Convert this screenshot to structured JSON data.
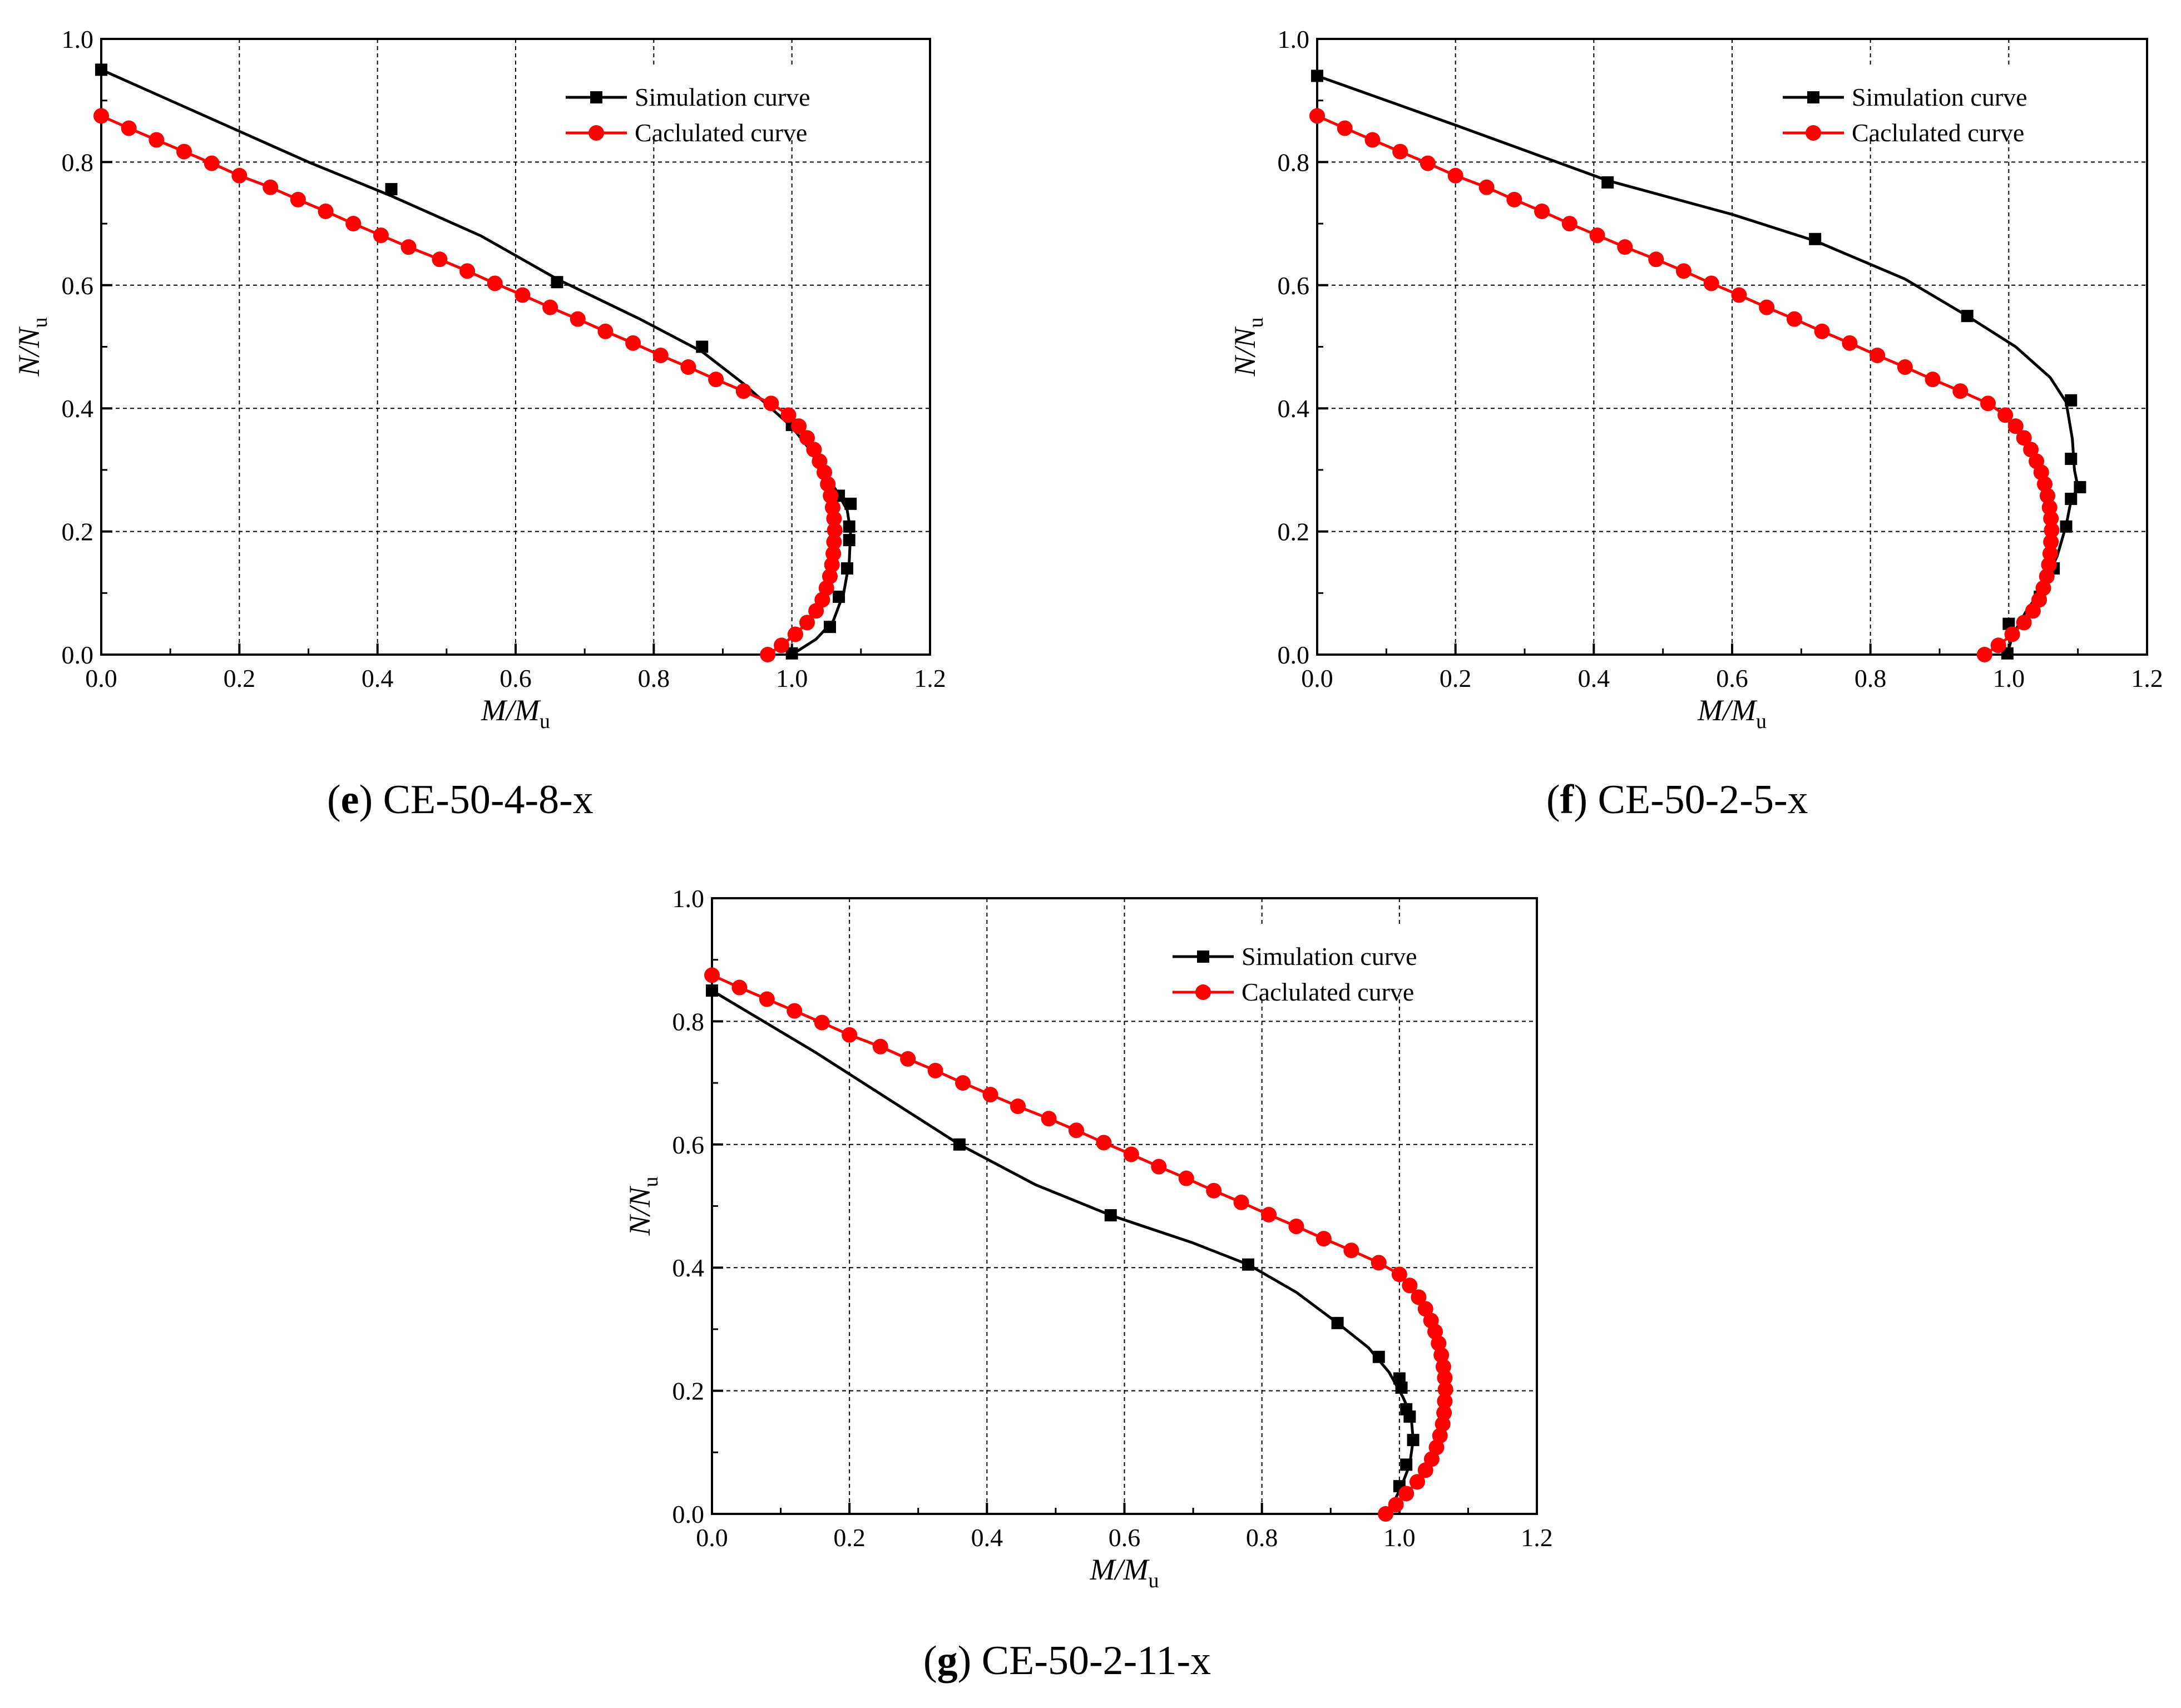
{
  "figure": {
    "colors": {
      "simulation": "#000000",
      "calculated": "#ff0000",
      "grid": "#000000",
      "background": "#ffffff"
    },
    "legend_position": "top-right",
    "axis_labels": {
      "x": {
        "main": "M/M",
        "sub": "u"
      },
      "y": {
        "main": "N/N",
        "sub": "u"
      }
    }
  },
  "chart_data": [
    {
      "id": "e",
      "type": "line",
      "caption_letter": "e",
      "caption_text": " CE-50-4-8-x",
      "xlim": [
        0,
        1.2
      ],
      "ylim": [
        0,
        1.0
      ],
      "x_ticks": [
        "0.0",
        "0.2",
        "0.4",
        "0.6",
        "0.8",
        "1.0",
        "1.2"
      ],
      "y_ticks": [
        "0.0",
        "0.2",
        "0.4",
        "0.6",
        "0.8",
        "1.0"
      ],
      "grid": true,
      "series": [
        {
          "name": "Simulation curve",
          "color": "#000000",
          "marker": "square",
          "points": [
            [
              0.0,
              0.95
            ],
            [
              0.42,
              0.756
            ],
            [
              0.66,
              0.605
            ],
            [
              0.87,
              0.5
            ],
            [
              1.0,
              0.373
            ],
            [
              1.068,
              0.258
            ],
            [
              1.085,
              0.245
            ],
            [
              1.083,
              0.208
            ],
            [
              1.083,
              0.186
            ],
            [
              1.08,
              0.14
            ],
            [
              1.068,
              0.094
            ],
            [
              1.055,
              0.045
            ],
            [
              1.0,
              0.002
            ]
          ],
          "curve": [
            [
              0.0,
              0.95
            ],
            [
              0.15,
              0.875
            ],
            [
              0.3,
              0.8
            ],
            [
              0.42,
              0.745
            ],
            [
              0.55,
              0.68
            ],
            [
              0.66,
              0.61
            ],
            [
              0.78,
              0.545
            ],
            [
              0.87,
              0.492
            ],
            [
              0.93,
              0.44
            ],
            [
              0.97,
              0.4
            ],
            [
              1.0,
              0.37
            ],
            [
              1.035,
              0.32
            ],
            [
              1.065,
              0.265
            ],
            [
              1.08,
              0.235
            ],
            [
              1.085,
              0.2
            ],
            [
              1.083,
              0.15
            ],
            [
              1.075,
              0.1
            ],
            [
              1.06,
              0.055
            ],
            [
              1.035,
              0.025
            ],
            [
              1.0,
              0.0
            ]
          ]
        },
        {
          "name": "Caclulated curve",
          "color": "#ff0000",
          "marker": "circle",
          "points": [
            [
              0.0,
              0.875
            ],
            [
              0.04,
              0.855
            ],
            [
              0.08,
              0.836
            ],
            [
              0.12,
              0.817
            ],
            [
              0.16,
              0.798
            ],
            [
              0.2,
              0.778
            ],
            [
              0.245,
              0.759
            ],
            [
              0.285,
              0.739
            ],
            [
              0.325,
              0.72
            ],
            [
              0.365,
              0.7
            ],
            [
              0.405,
              0.681
            ],
            [
              0.445,
              0.662
            ],
            [
              0.49,
              0.642
            ],
            [
              0.53,
              0.623
            ],
            [
              0.57,
              0.603
            ],
            [
              0.61,
              0.584
            ],
            [
              0.65,
              0.564
            ],
            [
              0.69,
              0.545
            ],
            [
              0.73,
              0.525
            ],
            [
              0.77,
              0.506
            ],
            [
              0.81,
              0.486
            ],
            [
              0.85,
              0.467
            ],
            [
              0.89,
              0.447
            ],
            [
              0.93,
              0.428
            ],
            [
              0.97,
              0.408
            ],
            [
              0.995,
              0.389
            ],
            [
              1.01,
              0.371
            ],
            [
              1.022,
              0.352
            ],
            [
              1.032,
              0.333
            ],
            [
              1.04,
              0.314
            ],
            [
              1.047,
              0.296
            ],
            [
              1.052,
              0.277
            ],
            [
              1.056,
              0.258
            ],
            [
              1.059,
              0.239
            ],
            [
              1.061,
              0.221
            ],
            [
              1.062,
              0.202
            ],
            [
              1.061,
              0.183
            ],
            [
              1.06,
              0.164
            ],
            [
              1.058,
              0.146
            ],
            [
              1.055,
              0.127
            ],
            [
              1.05,
              0.108
            ],
            [
              1.044,
              0.089
            ],
            [
              1.035,
              0.071
            ],
            [
              1.022,
              0.052
            ],
            [
              1.005,
              0.033
            ],
            [
              0.985,
              0.015
            ],
            [
              0.965,
              0.0
            ]
          ]
        }
      ]
    },
    {
      "id": "f",
      "type": "line",
      "caption_letter": "f",
      "caption_text": " CE-50-2-5-x",
      "xlim": [
        0,
        1.2
      ],
      "ylim": [
        0,
        1.0
      ],
      "x_ticks": [
        "0.0",
        "0.2",
        "0.4",
        "0.6",
        "0.8",
        "1.0",
        "1.2"
      ],
      "y_ticks": [
        "0.0",
        "0.2",
        "0.4",
        "0.6",
        "0.8",
        "1.0"
      ],
      "grid": true,
      "series": [
        {
          "name": "Simulation curve",
          "color": "#000000",
          "marker": "square",
          "points": [
            [
              0.0,
              0.94
            ],
            [
              0.42,
              0.767
            ],
            [
              0.72,
              0.675
            ],
            [
              0.94,
              0.55
            ],
            [
              1.09,
              0.413
            ],
            [
              1.09,
              0.318
            ],
            [
              1.103,
              0.272
            ],
            [
              1.09,
              0.253
            ],
            [
              1.083,
              0.208
            ],
            [
              1.065,
              0.14
            ],
            [
              1.045,
              0.094
            ],
            [
              1.0,
              0.05
            ],
            [
              0.998,
              0.002
            ]
          ],
          "curve": [
            [
              0.0,
              0.94
            ],
            [
              0.2,
              0.86
            ],
            [
              0.42,
              0.77
            ],
            [
              0.6,
              0.715
            ],
            [
              0.72,
              0.672
            ],
            [
              0.85,
              0.61
            ],
            [
              0.94,
              0.55
            ],
            [
              1.01,
              0.5
            ],
            [
              1.06,
              0.45
            ],
            [
              1.083,
              0.41
            ],
            [
              1.092,
              0.35
            ],
            [
              1.095,
              0.3
            ],
            [
              1.1,
              0.272
            ],
            [
              1.09,
              0.25
            ],
            [
              1.083,
              0.21
            ],
            [
              1.07,
              0.16
            ],
            [
              1.05,
              0.11
            ],
            [
              1.025,
              0.07
            ],
            [
              1.005,
              0.03
            ],
            [
              0.998,
              0.0
            ]
          ]
        },
        {
          "name": "Caclulated curve",
          "color": "#ff0000",
          "marker": "circle",
          "points": [
            [
              0.0,
              0.875
            ],
            [
              0.04,
              0.855
            ],
            [
              0.08,
              0.836
            ],
            [
              0.12,
              0.817
            ],
            [
              0.16,
              0.798
            ],
            [
              0.2,
              0.778
            ],
            [
              0.245,
              0.759
            ],
            [
              0.285,
              0.739
            ],
            [
              0.325,
              0.72
            ],
            [
              0.365,
              0.7
            ],
            [
              0.405,
              0.681
            ],
            [
              0.445,
              0.662
            ],
            [
              0.49,
              0.642
            ],
            [
              0.53,
              0.623
            ],
            [
              0.57,
              0.603
            ],
            [
              0.61,
              0.584
            ],
            [
              0.65,
              0.564
            ],
            [
              0.69,
              0.545
            ],
            [
              0.73,
              0.525
            ],
            [
              0.77,
              0.506
            ],
            [
              0.81,
              0.486
            ],
            [
              0.85,
              0.467
            ],
            [
              0.89,
              0.447
            ],
            [
              0.93,
              0.428
            ],
            [
              0.97,
              0.408
            ],
            [
              0.995,
              0.389
            ],
            [
              1.01,
              0.371
            ],
            [
              1.022,
              0.352
            ],
            [
              1.032,
              0.333
            ],
            [
              1.04,
              0.314
            ],
            [
              1.047,
              0.296
            ],
            [
              1.052,
              0.277
            ],
            [
              1.056,
              0.258
            ],
            [
              1.059,
              0.239
            ],
            [
              1.061,
              0.221
            ],
            [
              1.062,
              0.202
            ],
            [
              1.061,
              0.183
            ],
            [
              1.06,
              0.164
            ],
            [
              1.058,
              0.146
            ],
            [
              1.055,
              0.127
            ],
            [
              1.05,
              0.108
            ],
            [
              1.044,
              0.089
            ],
            [
              1.035,
              0.071
            ],
            [
              1.022,
              0.052
            ],
            [
              1.005,
              0.033
            ],
            [
              0.985,
              0.015
            ],
            [
              0.965,
              0.0
            ]
          ]
        }
      ]
    },
    {
      "id": "g",
      "type": "line",
      "caption_letter": "g",
      "caption_text": " CE-50-2-11-x",
      "xlim": [
        0,
        1.2
      ],
      "ylim": [
        0,
        1.0
      ],
      "x_ticks": [
        "0.0",
        "0.2",
        "0.4",
        "0.6",
        "0.8",
        "1.0",
        "1.2"
      ],
      "y_ticks": [
        "0.0",
        "0.2",
        "0.4",
        "0.6",
        "0.8",
        "1.0"
      ],
      "grid": true,
      "series": [
        {
          "name": "Simulation curve",
          "color": "#000000",
          "marker": "square",
          "points": [
            [
              0.0,
              0.85
            ],
            [
              0.36,
              0.6
            ],
            [
              0.58,
              0.485
            ],
            [
              0.78,
              0.405
            ],
            [
              0.91,
              0.31
            ],
            [
              0.97,
              0.255
            ],
            [
              1.0,
              0.22
            ],
            [
              1.003,
              0.205
            ],
            [
              1.01,
              0.17
            ],
            [
              1.015,
              0.158
            ],
            [
              1.02,
              0.12
            ],
            [
              1.01,
              0.08
            ],
            [
              1.0,
              0.045
            ]
          ],
          "curve": [
            [
              0.0,
              0.85
            ],
            [
              0.15,
              0.75
            ],
            [
              0.36,
              0.6
            ],
            [
              0.47,
              0.535
            ],
            [
              0.58,
              0.485
            ],
            [
              0.7,
              0.44
            ],
            [
              0.78,
              0.405
            ],
            [
              0.85,
              0.36
            ],
            [
              0.91,
              0.31
            ],
            [
              0.955,
              0.27
            ],
            [
              0.985,
              0.23
            ],
            [
              1.005,
              0.19
            ],
            [
              1.017,
              0.16
            ],
            [
              1.02,
              0.12
            ],
            [
              1.015,
              0.08
            ],
            [
              1.003,
              0.045
            ],
            [
              0.99,
              0.015
            ],
            [
              0.985,
              0.0
            ]
          ]
        },
        {
          "name": "Caclulated curve",
          "color": "#ff0000",
          "marker": "circle",
          "points": [
            [
              0.0,
              0.875
            ],
            [
              0.04,
              0.855
            ],
            [
              0.08,
              0.836
            ],
            [
              0.12,
              0.817
            ],
            [
              0.16,
              0.798
            ],
            [
              0.2,
              0.778
            ],
            [
              0.245,
              0.759
            ],
            [
              0.285,
              0.739
            ],
            [
              0.325,
              0.72
            ],
            [
              0.365,
              0.7
            ],
            [
              0.405,
              0.681
            ],
            [
              0.445,
              0.662
            ],
            [
              0.49,
              0.642
            ],
            [
              0.53,
              0.623
            ],
            [
              0.57,
              0.603
            ],
            [
              0.61,
              0.584
            ],
            [
              0.65,
              0.564
            ],
            [
              0.69,
              0.545
            ],
            [
              0.73,
              0.525
            ],
            [
              0.77,
              0.506
            ],
            [
              0.81,
              0.486
            ],
            [
              0.85,
              0.467
            ],
            [
              0.89,
              0.447
            ],
            [
              0.93,
              0.428
            ],
            [
              0.97,
              0.408
            ],
            [
              1.0,
              0.389
            ],
            [
              1.015,
              0.371
            ],
            [
              1.028,
              0.352
            ],
            [
              1.038,
              0.333
            ],
            [
              1.046,
              0.314
            ],
            [
              1.052,
              0.296
            ],
            [
              1.057,
              0.277
            ],
            [
              1.061,
              0.258
            ],
            [
              1.064,
              0.239
            ],
            [
              1.066,
              0.221
            ],
            [
              1.067,
              0.202
            ],
            [
              1.066,
              0.183
            ],
            [
              1.065,
              0.164
            ],
            [
              1.063,
              0.146
            ],
            [
              1.059,
              0.127
            ],
            [
              1.054,
              0.108
            ],
            [
              1.047,
              0.089
            ],
            [
              1.038,
              0.071
            ],
            [
              1.026,
              0.052
            ],
            [
              1.01,
              0.033
            ],
            [
              0.995,
              0.015
            ],
            [
              0.98,
              0.0
            ]
          ]
        }
      ]
    }
  ]
}
